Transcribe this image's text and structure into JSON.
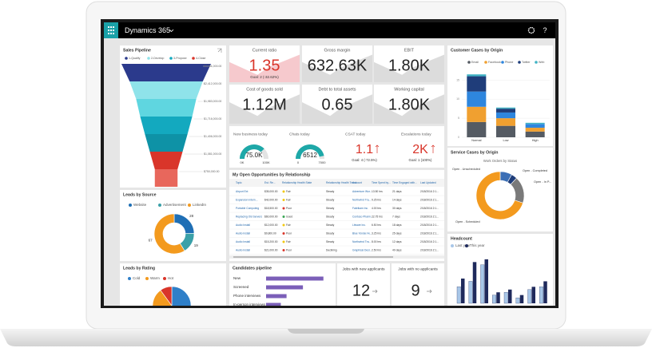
{
  "app": {
    "name": "Dynamics 365",
    "help": "?"
  },
  "sales_pipeline": {
    "title": "Sales Pipeline",
    "legend": [
      "1-Qualify",
      "2-Develop",
      "3-Propose",
      "4-Close"
    ],
    "legend_colors": [
      "#2b3a8c",
      "#8fe3ea",
      "#13a9bf",
      "#d9352a"
    ],
    "stages": [
      {
        "value": 2951000,
        "label": "$2,951,000.00",
        "color": "#2b3a8c"
      },
      {
        "value": 2412000,
        "label": "$2,412,000.00",
        "color": "#8fe3ea"
      },
      {
        "value": 1983000,
        "label": "$1,983,000.00",
        "color": "#5fd6e0"
      },
      {
        "value": 1716000,
        "label": "$1,716,000.00",
        "color": "#13a9bf"
      },
      {
        "value": 1406000,
        "label": "$1,406,000.00",
        "color": "#0e92a6"
      },
      {
        "value": 1081000,
        "label": "$1,081,000.00",
        "color": "#d9352a"
      },
      {
        "value": 750000,
        "label": "$750,000.00",
        "color": "#e8675c"
      }
    ]
  },
  "kpis": [
    {
      "title": "Current ratio",
      "value": "1.35",
      "goal": "Goal: 2 (-32.62%)",
      "alert": true
    },
    {
      "title": "Gross margin",
      "value": "632.63K"
    },
    {
      "title": "EBIT",
      "value": "1.80K"
    },
    {
      "title": "Cost of goods sold",
      "value": "1.12M"
    },
    {
      "title": "Debt to total assets",
      "value": "0.65"
    },
    {
      "title": "Working capital",
      "value": "1.80K"
    }
  ],
  "gauges": [
    {
      "title": "New business today",
      "value": 75000,
      "value_label": "75.0K",
      "min": {
        "value": 0,
        "label": "0K"
      },
      "max": {
        "value": 100000,
        "label": "100K"
      }
    },
    {
      "title": "Chats today",
      "value": 6512,
      "min": 0,
      "max": 7000
    }
  ],
  "today_kpis": [
    {
      "title": "CSAT today",
      "value": "1.1",
      "goal": "Goal: 4 (-72.5%)"
    },
    {
      "title": "Escalations today",
      "value": "2K",
      "goal": "Goal: 1 (100%)"
    }
  ],
  "opportunities": {
    "title": "My Open Opportunities by Relationship",
    "columns": [
      "Topic",
      "Est. Re...",
      "Relationship Health State",
      "Relationship Health Trend",
      "Account",
      "Time Spent by...",
      "Time Engaged with...",
      "Last Updated"
    ],
    "rows": [
      [
        "Airport Ext",
        "$35,000.00",
        "Fair",
        "Steady",
        "Adventure Wor...",
        "13.50 hrs",
        "21 days",
        "2/18/2016 2:1..."
      ],
      [
        "Expansion Intern...",
        "$42,000.00",
        "Fair",
        "Steady",
        "Northwind Tra...",
        "9.25 hrs",
        "14 days",
        "2/18/2016 2:1..."
      ],
      [
        "Portable Computing",
        "$18,500.00",
        "Poor",
        "Steady",
        "Fabrikam Inc.",
        "4.00 hrs",
        "30 days",
        "2/18/2016 2:1..."
      ],
      [
        "Replacing Old Servers",
        "$60,000.00",
        "Good",
        "Steady",
        "Contoso Pharm...",
        "22.75 hrs",
        "7 days",
        "2/18/2016 2:1..."
      ],
      [
        "Audio Install",
        "$12,000.00",
        "Fair",
        "Steady",
        "Litware Inc.",
        "6.50 hrs",
        "18 days",
        "2/18/2016 2:1..."
      ],
      [
        "Audio Install",
        "$9,800.00",
        "Poor",
        "Steady",
        "Blue Yonder Ai...",
        "3.25 hrs",
        "25 days",
        "2/18/2016 2:1..."
      ],
      [
        "Audio Install",
        "$15,200.00",
        "Fair",
        "Steady",
        "Northwind Tra...",
        "8.00 hrs",
        "12 days",
        "2/18/2016 2:1..."
      ],
      [
        "Audio Install",
        "$21,000.00",
        "Poor",
        "Declining",
        "Graphical Desi...",
        "2.50 hrs",
        "40 days",
        "2/18/2016 2:1..."
      ]
    ]
  },
  "leads_by_source": {
    "title": "Leads by Source",
    "names": [
      "Website",
      "Advertisement",
      "LinkedIn"
    ],
    "colors": [
      "#1f6fb5",
      "#3aa0a8",
      "#f39a1e"
    ],
    "values": [
      28,
      19,
      67
    ]
  },
  "leads_by_rating": {
    "title": "Leads by Rating",
    "names": [
      "Cold",
      "Warm",
      "Hot"
    ],
    "colors": [
      "#2f7fc8",
      "#f39a1e",
      "#d9352a"
    ],
    "values": [
      52,
      38,
      10
    ]
  },
  "candidates": {
    "title": "Candidates pipeline",
    "categories": [
      "New",
      "Screened",
      "Phone interviews",
      "In-person interviews"
    ],
    "values": [
      70,
      45,
      25,
      18
    ],
    "color": "#7b5fb8",
    "xlim": [
      0,
      80
    ]
  },
  "jobs": [
    {
      "title": "Jobs with new applicants",
      "value": "12"
    },
    {
      "title": "Jobs with no applicants",
      "value": "9"
    }
  ],
  "customer_cases": {
    "title": "Customer Cases by Origin",
    "categories": [
      "Normal",
      "Low",
      "High"
    ],
    "ylim": [
      0,
      18
    ],
    "yticks": [
      0,
      5,
      10,
      15
    ],
    "series": [
      {
        "name": "Email",
        "color": "#555b63",
        "values": [
          4,
          3,
          1.5
        ]
      },
      {
        "name": "Facebook",
        "color": "#f0a030",
        "values": [
          4,
          2,
          1
        ]
      },
      {
        "name": "Phone",
        "color": "#2e86de",
        "values": [
          4,
          1.5,
          1
        ]
      },
      {
        "name": "Twitter",
        "color": "#1f3d7a",
        "values": [
          4,
          1,
          0
        ]
      },
      {
        "name": "Web",
        "color": "#41b3c4",
        "values": [
          0.5,
          0.3,
          0.3
        ]
      }
    ]
  },
  "service_cases": {
    "title": "Service Cases by Origin",
    "subtitle": "Work Orders by Status",
    "names": [
      "Open - Unscheduled",
      "Open - Completed",
      "Open - In P...",
      "Open - Scheduled"
    ],
    "colors": [
      "#3c6fb5",
      "#1f3d7a",
      "#7a7a7a",
      "#f39a1e"
    ],
    "values": [
      8,
      4,
      18,
      70
    ]
  },
  "headcount": {
    "title": "Headcount",
    "categories": [
      null,
      null,
      null,
      null,
      null,
      null,
      null,
      null
    ],
    "ylim": [
      0,
      18
    ],
    "series": [
      {
        "name": "Last year",
        "color": "#a8c7e8",
        "values": [
          6,
          8,
          14,
          3,
          4,
          2,
          5,
          6
        ]
      },
      {
        "name": "This year",
        "color": "#1f2a5c",
        "values": [
          9,
          15,
          16,
          4,
          5,
          3,
          6,
          8
        ]
      }
    ]
  }
}
